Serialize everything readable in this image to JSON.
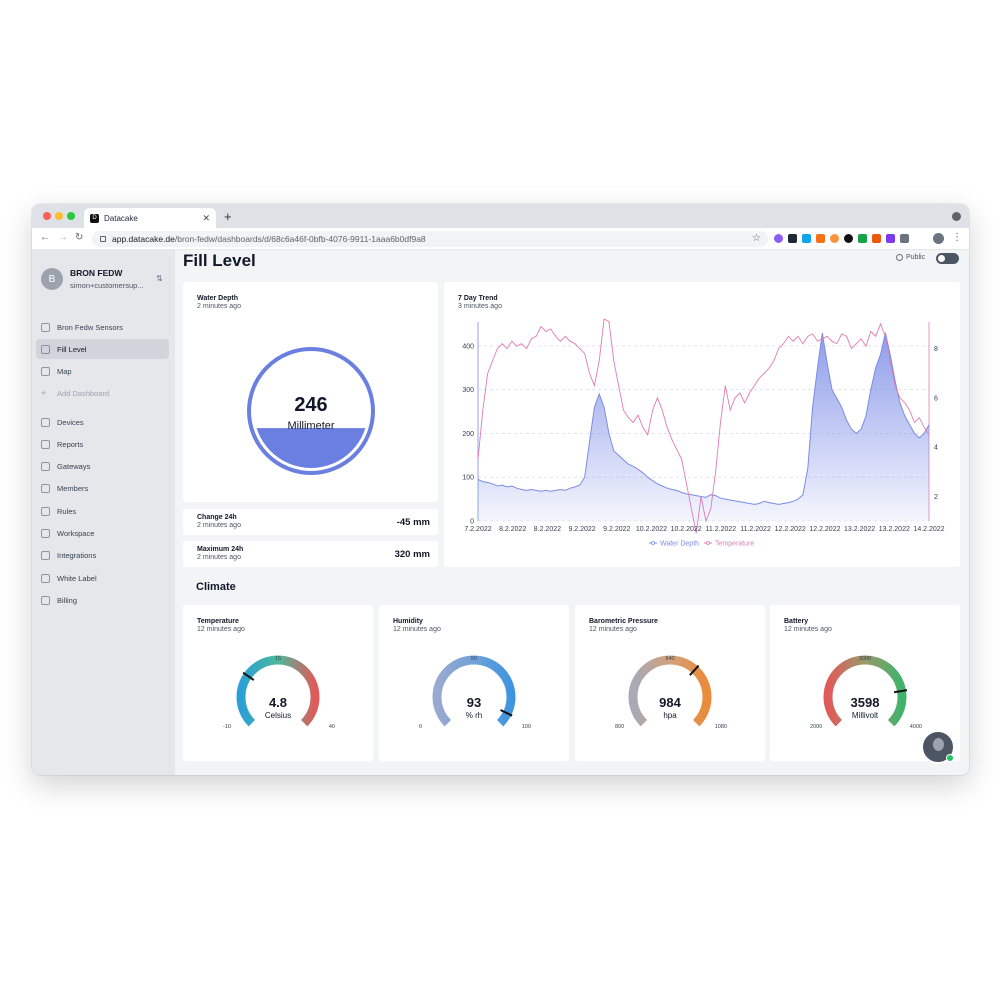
{
  "browser": {
    "tab_title": "Datacake",
    "favicon_text": "D",
    "url_host": "app.datacake.de",
    "url_path": "/bron-fedw/dashboards/d/68c6a46f-0bfb-4076-9911-1aaa6b0df9a8"
  },
  "sidebar": {
    "org_initial": "B",
    "org_name": "BRON FEDW",
    "org_email": "simon+customersup...",
    "dashboards": [
      {
        "label": "Bron Fedw Sensors",
        "icon": "chart-icon"
      },
      {
        "label": "Fill Level",
        "icon": "chart-icon"
      },
      {
        "label": "Map",
        "icon": "chart-icon"
      },
      {
        "label": "Add Dashboard",
        "icon": "plus-icon"
      }
    ],
    "items": [
      {
        "label": "Devices",
        "icon": "cloud-icon"
      },
      {
        "label": "Reports",
        "icon": "document-icon"
      },
      {
        "label": "Gateways",
        "icon": "antenna-icon"
      },
      {
        "label": "Members",
        "icon": "users-icon"
      },
      {
        "label": "Rules",
        "icon": "shuffle-icon"
      },
      {
        "label": "Workspace",
        "icon": "building-icon"
      },
      {
        "label": "Integrations",
        "icon": "puzzle-icon"
      },
      {
        "label": "White Label",
        "icon": "tag-icon"
      },
      {
        "label": "Billing",
        "icon": "bank-icon"
      }
    ]
  },
  "header": {
    "title": "Fill Level",
    "public_label": "Public"
  },
  "water_depth": {
    "title": "Water Depth",
    "updated": "2 minutes ago",
    "value": "246",
    "unit": "Millimeter",
    "fill_fraction": 0.35,
    "color": "#6b7fe0"
  },
  "change_24h": {
    "title": "Change 24h",
    "updated": "2 minutes ago",
    "value": "-45 mm"
  },
  "maximum_24h": {
    "title": "Maximum 24h",
    "updated": "2 minutes ago",
    "value": "320 mm"
  },
  "trend": {
    "title": "7 Day Trend",
    "updated": "3 minutes ago"
  },
  "chart_data": {
    "type": "line",
    "x_labels": [
      "7.2.2022",
      "8.2.2022",
      "8.2.2022",
      "9.2.2022",
      "9.2.2022",
      "10.2.2022",
      "10.2.2022",
      "11.2.2022",
      "11.2.2022",
      "12.2.2022",
      "12.2.2022",
      "13.2.2022",
      "13.2.2022",
      "14.2.2022"
    ],
    "y_left_ticks": [
      "0",
      "100",
      "200",
      "300",
      "400"
    ],
    "y_right_ticks": [
      "2",
      "4",
      "6",
      "8"
    ],
    "y_left_range": [
      0,
      450
    ],
    "y_right_range": [
      1,
      9
    ],
    "legend_position": "bottom",
    "grid": "horizontal dashed",
    "series": [
      {
        "name": "Water Depth",
        "axis": "left",
        "color": "#7b8ce6",
        "type": "area",
        "points": [
          [
            0,
            95
          ],
          [
            1,
            90
          ],
          [
            2,
            88
          ],
          [
            3,
            85
          ],
          [
            4,
            80
          ],
          [
            5,
            82
          ],
          [
            6,
            78
          ],
          [
            7,
            80
          ],
          [
            8,
            75
          ],
          [
            9,
            72
          ],
          [
            10,
            70
          ],
          [
            11,
            72
          ],
          [
            12,
            70
          ],
          [
            13,
            68
          ],
          [
            14,
            70
          ],
          [
            15,
            68
          ],
          [
            16,
            70
          ],
          [
            17,
            72
          ],
          [
            18,
            70
          ],
          [
            19,
            75
          ],
          [
            20,
            78
          ],
          [
            21,
            82
          ],
          [
            22,
            100
          ],
          [
            23,
            180
          ],
          [
            24,
            260
          ],
          [
            25,
            290
          ],
          [
            26,
            260
          ],
          [
            27,
            200
          ],
          [
            28,
            160
          ],
          [
            29,
            150
          ],
          [
            30,
            140
          ],
          [
            31,
            130
          ],
          [
            32,
            125
          ],
          [
            33,
            118
          ],
          [
            34,
            110
          ],
          [
            35,
            100
          ],
          [
            36,
            92
          ],
          [
            37,
            85
          ],
          [
            38,
            80
          ],
          [
            39,
            75
          ],
          [
            40,
            72
          ],
          [
            41,
            70
          ],
          [
            42,
            65
          ],
          [
            43,
            62
          ],
          [
            44,
            60
          ],
          [
            45,
            58
          ],
          [
            46,
            56
          ],
          [
            47,
            54
          ],
          [
            48,
            60
          ],
          [
            49,
            58
          ],
          [
            50,
            52
          ],
          [
            51,
            50
          ],
          [
            52,
            48
          ],
          [
            53,
            46
          ],
          [
            54,
            44
          ],
          [
            55,
            42
          ],
          [
            56,
            40
          ],
          [
            57,
            38
          ],
          [
            58,
            40
          ],
          [
            59,
            45
          ],
          [
            60,
            42
          ],
          [
            61,
            40
          ],
          [
            62,
            38
          ],
          [
            63,
            40
          ],
          [
            64,
            42
          ],
          [
            65,
            45
          ],
          [
            66,
            50
          ],
          [
            67,
            60
          ],
          [
            68,
            120
          ],
          [
            69,
            260
          ],
          [
            70,
            350
          ],
          [
            71,
            430
          ],
          [
            72,
            360
          ],
          [
            73,
            300
          ],
          [
            74,
            280
          ],
          [
            75,
            260
          ],
          [
            76,
            230
          ],
          [
            77,
            210
          ],
          [
            78,
            200
          ],
          [
            79,
            210
          ],
          [
            80,
            240
          ],
          [
            81,
            300
          ],
          [
            82,
            350
          ],
          [
            83,
            380
          ],
          [
            84,
            430
          ],
          [
            85,
            380
          ],
          [
            86,
            320
          ],
          [
            87,
            270
          ],
          [
            88,
            240
          ],
          [
            89,
            220
          ],
          [
            90,
            200
          ],
          [
            91,
            190
          ],
          [
            92,
            200
          ],
          [
            93,
            220
          ]
        ]
      },
      {
        "name": "Temperature",
        "axis": "right",
        "color": "#e17bb0",
        "type": "line",
        "points": [
          [
            0,
            3.5
          ],
          [
            1,
            5.5
          ],
          [
            2,
            7
          ],
          [
            3,
            7.5
          ],
          [
            4,
            8
          ],
          [
            5,
            8.2
          ],
          [
            6,
            8
          ],
          [
            7,
            8.3
          ],
          [
            8,
            8.1
          ],
          [
            9,
            8.2
          ],
          [
            10,
            8
          ],
          [
            11,
            8.4
          ],
          [
            12,
            8.5
          ],
          [
            13,
            8.9
          ],
          [
            14,
            8.7
          ],
          [
            15,
            8.8
          ],
          [
            16,
            8.5
          ],
          [
            17,
            8.3
          ],
          [
            18,
            8.5
          ],
          [
            19,
            8.3
          ],
          [
            20,
            8.2
          ],
          [
            21,
            8
          ],
          [
            22,
            7.8
          ],
          [
            23,
            7
          ],
          [
            24,
            6.5
          ],
          [
            25,
            7.5
          ],
          [
            26,
            9.2
          ],
          [
            27,
            9.1
          ],
          [
            28,
            7.5
          ],
          [
            29,
            6.5
          ],
          [
            30,
            5.5
          ],
          [
            31,
            5.2
          ],
          [
            32,
            5
          ],
          [
            33,
            5.3
          ],
          [
            34,
            4.8
          ],
          [
            35,
            4.5
          ],
          [
            36,
            5.5
          ],
          [
            37,
            6
          ],
          [
            38,
            5.5
          ],
          [
            39,
            4.8
          ],
          [
            40,
            4.3
          ],
          [
            41,
            3.9
          ],
          [
            42,
            3.5
          ],
          [
            43,
            2.5
          ],
          [
            44,
            1.5
          ],
          [
            45,
            0.5
          ],
          [
            46,
            2
          ],
          [
            47,
            1
          ],
          [
            48,
            1.5
          ],
          [
            49,
            3
          ],
          [
            50,
            5
          ],
          [
            51,
            6.5
          ],
          [
            52,
            5.5
          ],
          [
            53,
            6
          ],
          [
            54,
            6.2
          ],
          [
            55,
            5.8
          ],
          [
            56,
            6.2
          ],
          [
            57,
            6.5
          ],
          [
            58,
            6.8
          ],
          [
            59,
            7
          ],
          [
            60,
            7.2
          ],
          [
            61,
            7.5
          ],
          [
            62,
            8
          ],
          [
            63,
            8.2
          ],
          [
            64,
            8.5
          ],
          [
            65,
            8.3
          ],
          [
            66,
            8.5
          ],
          [
            67,
            8.2
          ],
          [
            68,
            8.5
          ],
          [
            69,
            8.6
          ],
          [
            70,
            8.3
          ],
          [
            71,
            8.4
          ],
          [
            72,
            8.5
          ],
          [
            73,
            8.3
          ],
          [
            74,
            8.2
          ],
          [
            75,
            8.6
          ],
          [
            76,
            8.5
          ],
          [
            77,
            8
          ],
          [
            78,
            8.2
          ],
          [
            79,
            8.4
          ],
          [
            80,
            8.1
          ],
          [
            81,
            8.7
          ],
          [
            82,
            8.5
          ],
          [
            83,
            9
          ],
          [
            84,
            8.5
          ],
          [
            85,
            7.5
          ],
          [
            86,
            6.5
          ],
          [
            87,
            6
          ],
          [
            88,
            5.8
          ],
          [
            89,
            5.5
          ],
          [
            90,
            5
          ],
          [
            91,
            5.2
          ],
          [
            92,
            4.8
          ],
          [
            93,
            4.5
          ]
        ]
      }
    ]
  },
  "climate": {
    "title": "Climate",
    "gauges": [
      {
        "title": "Temperature",
        "updated": "12 minutes ago",
        "value": "4.8",
        "unit": "Celsius",
        "min": "-10",
        "mid": "15",
        "max": "40",
        "fraction": 0.296,
        "colors": [
          "#2a9fd6",
          "#4cb89a",
          "#e05a5a"
        ]
      },
      {
        "title": "Humidity",
        "updated": "12 minutes ago",
        "value": "93",
        "unit": "% rh",
        "min": "0",
        "mid": "50",
        "max": "100",
        "fraction": 0.93,
        "colors": [
          "#9aa9d0",
          "#6fa2d8",
          "#3f94e0"
        ]
      },
      {
        "title": "Barometric Pressure",
        "updated": "12 minutes ago",
        "value": "984",
        "unit": "hpa",
        "min": "800",
        "mid": "940",
        "max": "1080",
        "fraction": 0.657,
        "colors": [
          "#a8aab8",
          "#d3a07a",
          "#ea8a3a"
        ]
      },
      {
        "title": "Battery",
        "updated": "12 minutes ago",
        "value": "3598",
        "unit": "Millivolt",
        "min": "2000",
        "mid": "3000",
        "max": "4000",
        "fraction": 0.799,
        "colors": [
          "#e05a5a",
          "#9a9a6a",
          "#3fb36b"
        ]
      }
    ]
  }
}
